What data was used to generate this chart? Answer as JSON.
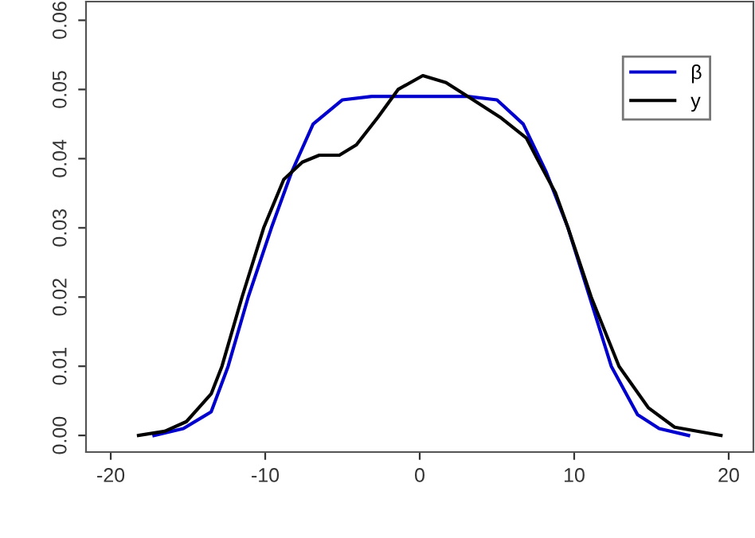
{
  "chart_data": {
    "type": "line",
    "xlim": [
      -21.6,
      21.6
    ],
    "ylim": [
      -0.0024,
      0.0627
    ],
    "xticks": [
      -20,
      -10,
      0,
      10,
      20
    ],
    "yticks": [
      {
        "value": 0,
        "label": "0.00"
      },
      {
        "value": 0.01,
        "label": "0.01"
      },
      {
        "value": 0.02,
        "label": "0.02"
      },
      {
        "value": 0.03,
        "label": "0.03"
      },
      {
        "value": 0.04,
        "label": "0.04"
      },
      {
        "value": 0.05,
        "label": "0.05"
      },
      {
        "value": 0.06,
        "label": "0.06"
      }
    ],
    "legend": "top right",
    "grid": false,
    "line_style": "solid",
    "marker": "none",
    "series": [
      {
        "name": "β",
        "color": "#0000cc",
        "x": [
          -17.2,
          -15.3,
          -13.5,
          -12.4,
          -11.1,
          -9.6,
          -8.3,
          -6.9,
          -5.0,
          -3.1,
          0,
          3.1,
          5.0,
          6.7,
          8.2,
          9.6,
          11.0,
          12.4,
          14.1,
          15.5,
          17.4
        ],
        "values": [
          0,
          0.001,
          0.0034,
          0.01,
          0.02,
          0.03,
          0.038,
          0.045,
          0.0485,
          0.049,
          0.049,
          0.049,
          0.0485,
          0.045,
          0.038,
          0.03,
          0.02,
          0.01,
          0.003,
          0.001,
          0
        ]
      },
      {
        "name": "y",
        "color": "#000000",
        "x": [
          -18.2,
          -16.5,
          -15.1,
          -13.5,
          -12.8,
          -11.5,
          -10.1,
          -8.8,
          -7.6,
          -6.5,
          -5.2,
          -4.1,
          -2.7,
          -1.4,
          0.2,
          1.7,
          3.1,
          5.2,
          6.9,
          7.6,
          8.8,
          9.6,
          11.1,
          12.9,
          14.8,
          16.5,
          19.5
        ],
        "values": [
          0,
          0.0006,
          0.002,
          0.006,
          0.01,
          0.02,
          0.03,
          0.037,
          0.0395,
          0.0405,
          0.0405,
          0.042,
          0.046,
          0.05,
          0.052,
          0.051,
          0.049,
          0.046,
          0.043,
          0.04,
          0.035,
          0.03,
          0.02,
          0.01,
          0.004,
          0.0012,
          0
        ]
      }
    ]
  }
}
